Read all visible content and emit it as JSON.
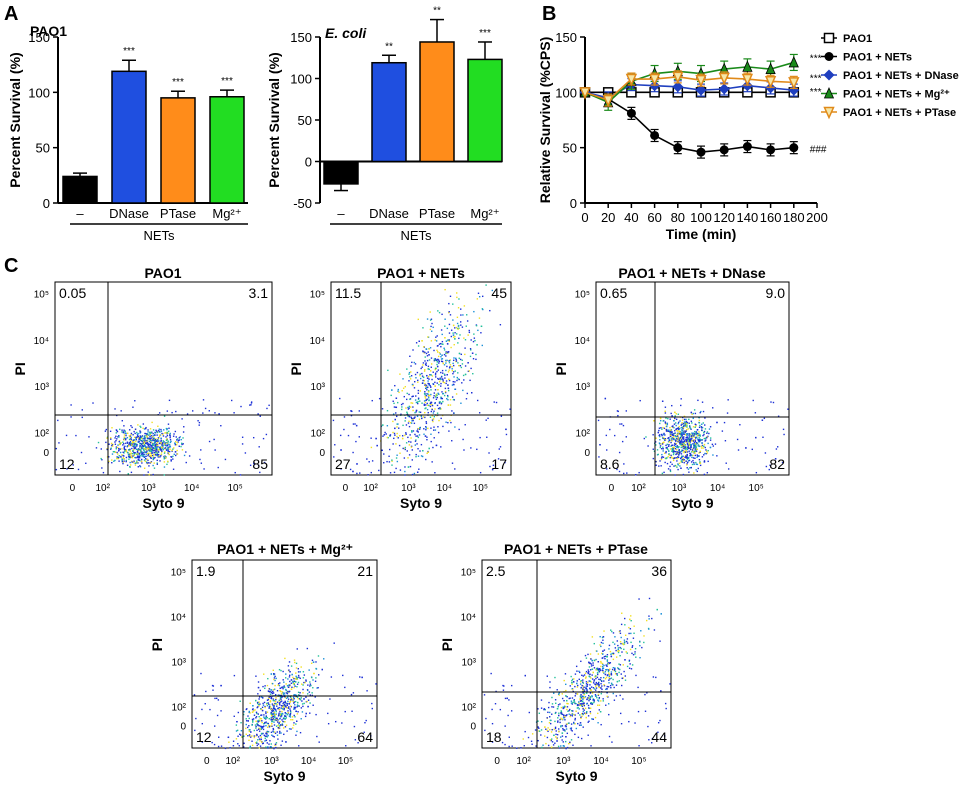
{
  "panel_letters": [
    "A",
    "B",
    "C"
  ],
  "chart_data": [
    {
      "type": "bar",
      "title": "PAO1",
      "ylabel": "Percent Survival (%)",
      "ylim": [
        0,
        150
      ],
      "yticks": [
        "0",
        "50",
        "100",
        "150"
      ],
      "categories": [
        "–",
        "DNase",
        "PTase",
        "Mg²⁺"
      ],
      "values": [
        24,
        119,
        95,
        96
      ],
      "errors": [
        3,
        10,
        6,
        6
      ],
      "significance": [
        "",
        "***",
        "***",
        "***"
      ],
      "colors": [
        "#000000",
        "#1f4fe0",
        "#ff8c1a",
        "#22dd22"
      ],
      "group_label": "NETs"
    },
    {
      "type": "bar",
      "title": "E. coli",
      "ylabel": "Percent Survival (%)",
      "ylim": [
        -50,
        150
      ],
      "yticks": [
        "-50",
        "0",
        "50",
        "100",
        "150"
      ],
      "categories": [
        "–",
        "DNase",
        "PTase",
        "Mg²⁺"
      ],
      "values": [
        -27,
        119,
        144,
        123
      ],
      "errors": [
        8,
        9,
        27,
        21
      ],
      "significance": [
        "",
        "**",
        "**",
        "***"
      ],
      "colors": [
        "#000000",
        "#1f4fe0",
        "#ff8c1a",
        "#22dd22"
      ],
      "group_label": "NETs"
    },
    {
      "type": "line",
      "xlabel": "Time (min)",
      "ylabel": "Relative Survival (%CPS)",
      "xlim": [
        0,
        200
      ],
      "ylim": [
        0,
        150
      ],
      "xticks": [
        "0",
        "20",
        "40",
        "60",
        "80",
        "100",
        "120",
        "140",
        "160",
        "180",
        "200"
      ],
      "yticks": [
        "0",
        "50",
        "100",
        "150"
      ],
      "x": [
        0,
        20,
        40,
        60,
        80,
        100,
        120,
        140,
        160,
        180
      ],
      "series": [
        {
          "name": "PAO1",
          "marker": "open-square",
          "color": "#000000",
          "values": [
            100,
            100,
            100,
            100,
            100,
            100,
            100,
            100,
            100,
            100
          ],
          "annotation": ""
        },
        {
          "name": "PAO1 + NETs",
          "marker": "circle",
          "color": "#000000",
          "values": [
            100,
            94,
            81,
            61,
            50,
            46,
            48,
            51,
            48,
            50
          ],
          "annotation": "###"
        },
        {
          "name": "PAO1 + NETs + DNase",
          "marker": "diamond",
          "color": "#1f3fbf",
          "values": [
            100,
            95,
            107,
            106,
            105,
            102,
            103,
            106,
            104,
            102
          ],
          "annotation": "***"
        },
        {
          "name": "PAO1 + NETs + Mg²⁺",
          "marker": "triangle-up",
          "color": "#1a8a1a",
          "values": [
            100,
            91,
            110,
            117,
            119,
            117,
            121,
            123,
            121,
            127
          ],
          "annotation": "***"
        },
        {
          "name": "PAO1 + NETs + PTase",
          "marker": "triangle-down",
          "color": "#e08a1a",
          "values": [
            100,
            93,
            112,
            112,
            114,
            111,
            113,
            112,
            110,
            109
          ],
          "annotation": "***"
        }
      ]
    }
  ],
  "flow_plots": {
    "xlabel": "Syto 9",
    "ylabel": "PI",
    "x_ticks": [
      "0",
      "10²",
      "10³",
      "10⁴",
      "10⁵"
    ],
    "y_ticks": [
      "10⁵",
      "10⁴",
      "10³",
      "10²",
      "0"
    ],
    "plots": [
      {
        "title": "PAO1",
        "q_ul": "0.05",
        "q_ur": "3.1",
        "q_ll": "12",
        "q_lr": "85"
      },
      {
        "title": "PAO1 + NETs",
        "q_ul": "11.5",
        "q_ur": "45",
        "q_ll": "27",
        "q_lr": "17"
      },
      {
        "title": "PAO1 + NETs + DNase",
        "q_ul": "0.65",
        "q_ur": "9.0",
        "q_ll": "8.6",
        "q_lr": "82"
      },
      {
        "title": "PAO1 + NETs + Mg²⁺",
        "q_ul": "1.9",
        "q_ur": "21",
        "q_ll": "12",
        "q_lr": "64"
      },
      {
        "title": "PAO1 + NETs + PTase",
        "q_ul": "2.5",
        "q_ur": "36",
        "q_ll": "18",
        "q_lr": "44"
      }
    ]
  }
}
